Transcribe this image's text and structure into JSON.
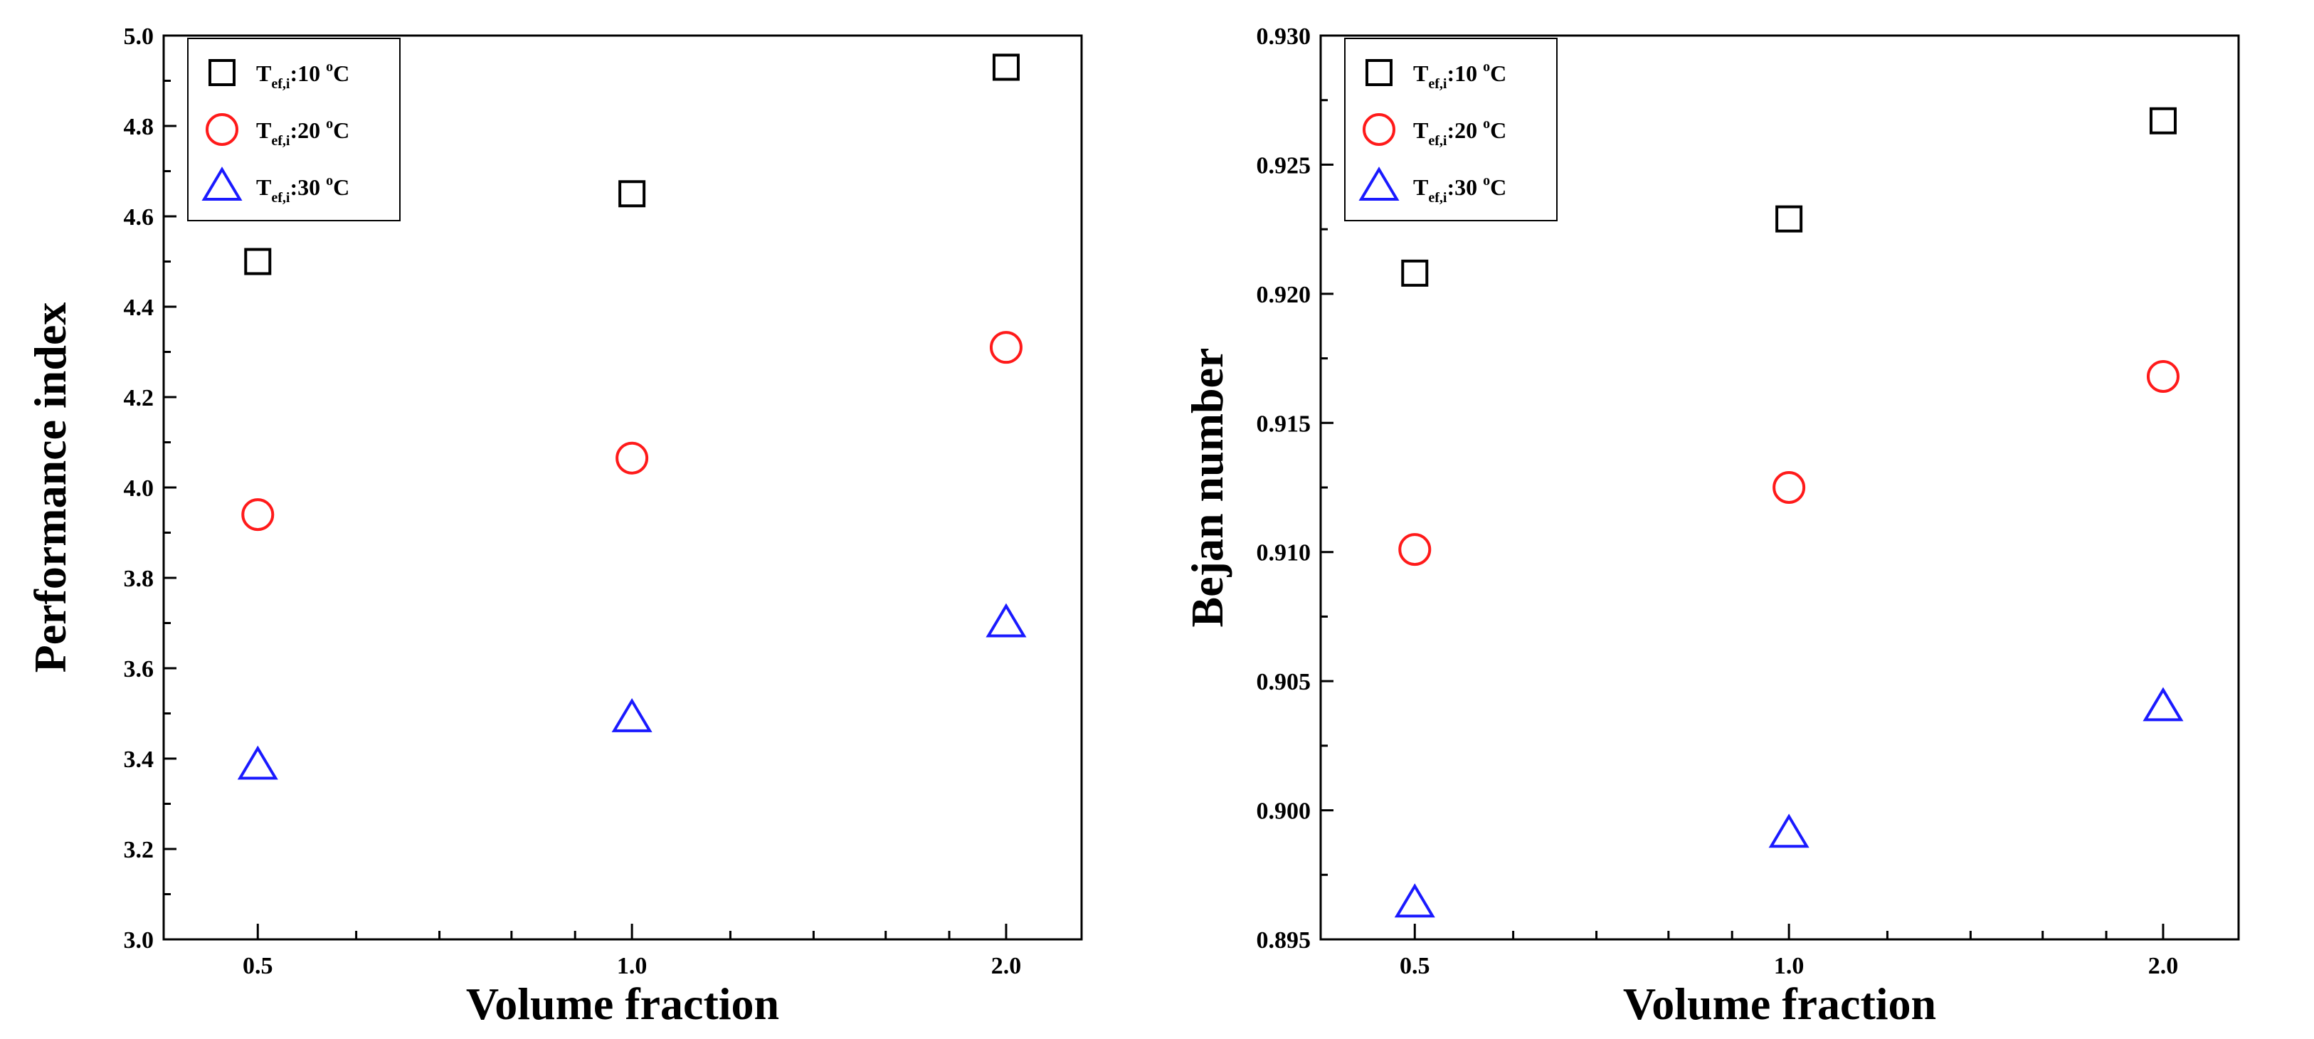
{
  "chart_data": [
    {
      "type": "scatter",
      "title": "",
      "xlabel": "Volume fraction",
      "ylabel": "Performance index",
      "xscale": "log",
      "xlim": [
        0.42,
        2.3
      ],
      "ylim": [
        3.0,
        5.0
      ],
      "xticks": [
        0.5,
        1.0,
        2.0
      ],
      "xtick_labels": [
        "0.5",
        "1.0",
        "2.0"
      ],
      "yticks": [
        3.0,
        3.2,
        3.4,
        3.6,
        3.8,
        4.0,
        4.2,
        4.4,
        4.6,
        4.8,
        5.0
      ],
      "ytick_labels": [
        "3.0",
        "3.2",
        "3.4",
        "3.6",
        "3.8",
        "4.0",
        "4.2",
        "4.4",
        "4.6",
        "4.8",
        "5.0"
      ],
      "legend_position": "top-left",
      "series": [
        {
          "name": "T",
          "sub": "ef,i",
          "suffix": ":10 ",
          "sup": "o",
          "unit": "C",
          "marker": "square",
          "color": "#000000",
          "x": [
            0.5,
            1.0,
            2.0
          ],
          "values": [
            4.5,
            4.65,
            4.93
          ]
        },
        {
          "name": "T",
          "sub": "ef,i",
          "suffix": ":20 ",
          "sup": "o",
          "unit": "C",
          "marker": "circle",
          "color": "#ff1a1a",
          "x": [
            0.5,
            1.0,
            2.0
          ],
          "values": [
            3.94,
            4.065,
            4.31
          ]
        },
        {
          "name": "T",
          "sub": "ef,i",
          "suffix": ":30 ",
          "sup": "o",
          "unit": "C",
          "marker": "triangle",
          "color": "#1a1aff",
          "x": [
            0.5,
            1.0,
            2.0
          ],
          "values": [
            3.385,
            3.49,
            3.7
          ]
        }
      ]
    },
    {
      "type": "scatter",
      "title": "",
      "xlabel": "Volume fraction",
      "ylabel": "Bejan number",
      "xscale": "log",
      "xlim": [
        0.42,
        2.3
      ],
      "ylim": [
        0.895,
        0.93
      ],
      "xticks": [
        0.5,
        1.0,
        2.0
      ],
      "xtick_labels": [
        "0.5",
        "1.0",
        "2.0"
      ],
      "yticks": [
        0.895,
        0.9,
        0.905,
        0.91,
        0.915,
        0.92,
        0.925,
        0.93
      ],
      "ytick_labels": [
        "0.895",
        "0.900",
        "0.905",
        "0.910",
        "0.915",
        "0.920",
        "0.925",
        "0.930"
      ],
      "legend_position": "top-left",
      "series": [
        {
          "name": "T",
          "sub": "ef,i",
          "suffix": ":10 ",
          "sup": "o",
          "unit": "C",
          "marker": "square",
          "color": "#000000",
          "x": [
            0.5,
            1.0,
            2.0
          ],
          "values": [
            0.9208,
            0.9229,
            0.9267
          ]
        },
        {
          "name": "T",
          "sub": "ef,i",
          "suffix": ":20 ",
          "sup": "o",
          "unit": "C",
          "marker": "circle",
          "color": "#ff1a1a",
          "x": [
            0.5,
            1.0,
            2.0
          ],
          "values": [
            0.9101,
            0.9125,
            0.9168
          ]
        },
        {
          "name": "T",
          "sub": "ef,i",
          "suffix": ":30 ",
          "sup": "o",
          "unit": "C",
          "marker": "triangle",
          "color": "#1a1aff",
          "x": [
            0.5,
            1.0,
            2.0
          ],
          "values": [
            0.8964,
            0.8991,
            0.904
          ]
        }
      ]
    }
  ]
}
